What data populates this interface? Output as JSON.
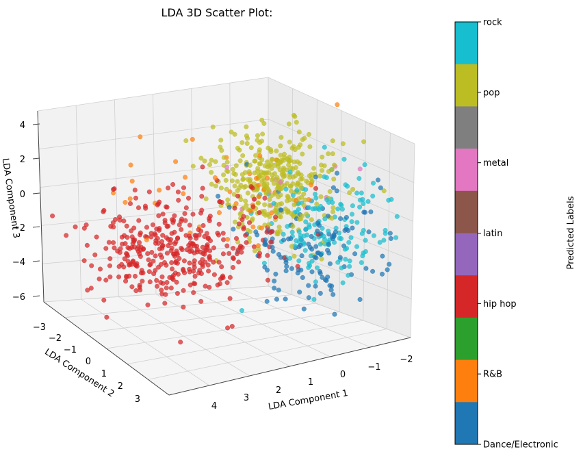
{
  "chart_data": {
    "type": "scatter",
    "title": "LDA 3D Scatter Plot:",
    "xlabel": "LDA Component 1",
    "ylabel": "LDA Component 2",
    "zlabel": "LDA Component 3",
    "xlim": [
      -2.3,
      4.6
    ],
    "ylim": [
      -3.2,
      3.4
    ],
    "zlim": [
      -6.5,
      4.8
    ],
    "x_ticks": [
      "4",
      "3",
      "2",
      "1",
      "0",
      "−1",
      "−2"
    ],
    "y_ticks": [
      "−3",
      "−2",
      "−1",
      "0",
      "1",
      "2",
      "3"
    ],
    "z_ticks": [
      "4",
      "2",
      "0",
      "−2",
      "−4",
      "−6"
    ],
    "colorbar": {
      "label": "Predicted Labels",
      "categories": [
        "Dance/Electronic",
        "R&B",
        "hip hop",
        "latin",
        "metal",
        "pop",
        "rock"
      ],
      "colors": [
        "#1f77b4",
        "#ff7f0e",
        "#2ca02c",
        "#d62728",
        "#9467bd",
        "#8c564b",
        "#e377c2",
        "#7f7f7f",
        "#bcbd22",
        "#17becf"
      ]
    },
    "series": [
      {
        "name": "hip hop",
        "color": "#d62728",
        "count": 380,
        "center": [
          3.6,
          0.1,
          -0.5
        ],
        "spread": [
          0.85,
          0.7,
          0.9
        ]
      },
      {
        "name": "pop",
        "color": "#bcbd22",
        "count": 360,
        "center": [
          1.5,
          -1.1,
          1.0
        ],
        "spread": [
          0.55,
          0.6,
          0.9
        ]
      },
      {
        "name": "rock",
        "color": "#17becf",
        "count": 150,
        "center": [
          0.7,
          -0.5,
          -0.4
        ],
        "spread": [
          0.55,
          0.6,
          1.0
        ]
      },
      {
        "name": "Dance/Electronic",
        "color": "#1f77b4",
        "count": 130,
        "center": [
          1.0,
          -0.2,
          -1.0
        ],
        "spread": [
          0.6,
          0.7,
          1.1
        ]
      },
      {
        "name": "R&B",
        "color": "#ff7f0e",
        "count": 40,
        "center": [
          2.3,
          -0.6,
          0.6
        ],
        "spread": [
          1.1,
          0.9,
          1.1
        ]
      },
      {
        "name": "metal",
        "color": "#e377c2",
        "count": 12,
        "center": [
          1.2,
          -1.2,
          0.8
        ],
        "spread": [
          0.7,
          0.6,
          0.8
        ]
      }
    ]
  }
}
